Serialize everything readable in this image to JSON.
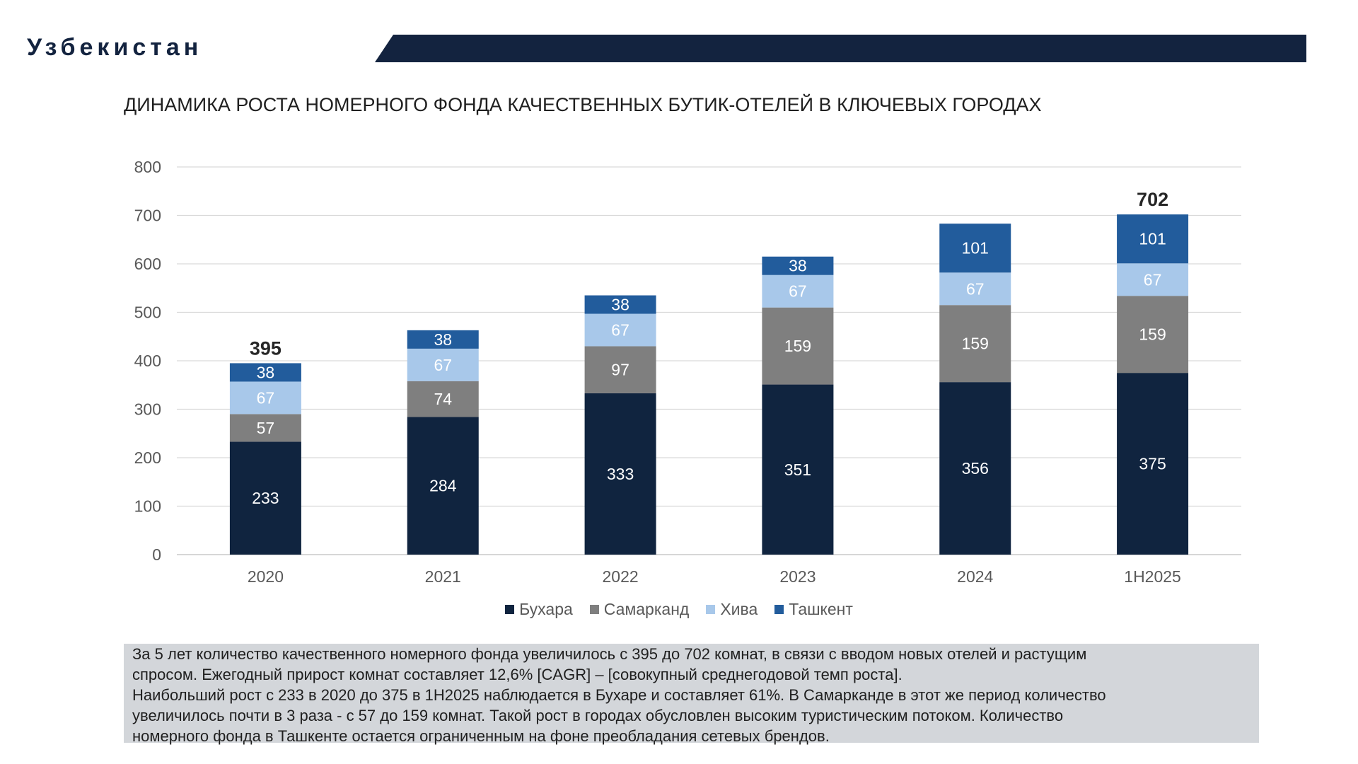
{
  "header": {
    "title": "Узбекистан"
  },
  "chart_data": {
    "type": "bar",
    "stacked": true,
    "title": "ДИНАМИКА РОСТА НОМЕРНОГО ФОНДА КАЧЕСТВЕННЫХ БУТИК-ОТЕЛЕЙ В КЛЮЧЕВЫХ ГОРОДАХ",
    "categories": [
      "2020",
      "2021",
      "2022",
      "2023",
      "2024",
      "1H2025"
    ],
    "series": [
      {
        "name": "Бухара",
        "color": "#10243f",
        "values": [
          233,
          284,
          333,
          351,
          356,
          375
        ]
      },
      {
        "name": "Самарканд",
        "color": "#7f7f7f",
        "values": [
          57,
          74,
          97,
          159,
          159,
          159
        ]
      },
      {
        "name": "Хива",
        "color": "#a8c8ea",
        "values": [
          67,
          67,
          67,
          67,
          67,
          67
        ]
      },
      {
        "name": "Ташкент",
        "color": "#225c9c",
        "values": [
          38,
          38,
          38,
          38,
          101,
          101
        ]
      }
    ],
    "totals_shown": [
      {
        "category": "2020",
        "label": "395"
      },
      {
        "category": "1H2025",
        "label": "702"
      }
    ],
    "yticks": [
      "0",
      "100",
      "200",
      "300",
      "400",
      "500",
      "600",
      "700",
      "800"
    ],
    "ylim": [
      0,
      800
    ],
    "grid": true,
    "legend_position": "bottom-center",
    "xlabel": "",
    "ylabel": ""
  },
  "summary": {
    "line1": "За 5 лет количество качественного номерного фонда увеличилось с 395 до 702 комнат, в связи с вводом новых отелей и растущим",
    "line2": "спросом. Ежегодный прирост комнат составляет 12,6%  [CAGR] – [совокупный среднегодовой темп роста].",
    "line3": "Наибольший рост с 233 в 2020 до 375 в 1H2025 наблюдается в Бухаре и составляет 61%. В Самарканде в этот же период количество",
    "line4": "увеличилось почти в 3  раза - с 57 до 159 комнат. Такой рост в городах обусловлен высоким туристическим потоком. Количество",
    "line5": "номерного фонда в Ташкенте остается ограниченным на фоне преобладания сетевых брендов."
  }
}
